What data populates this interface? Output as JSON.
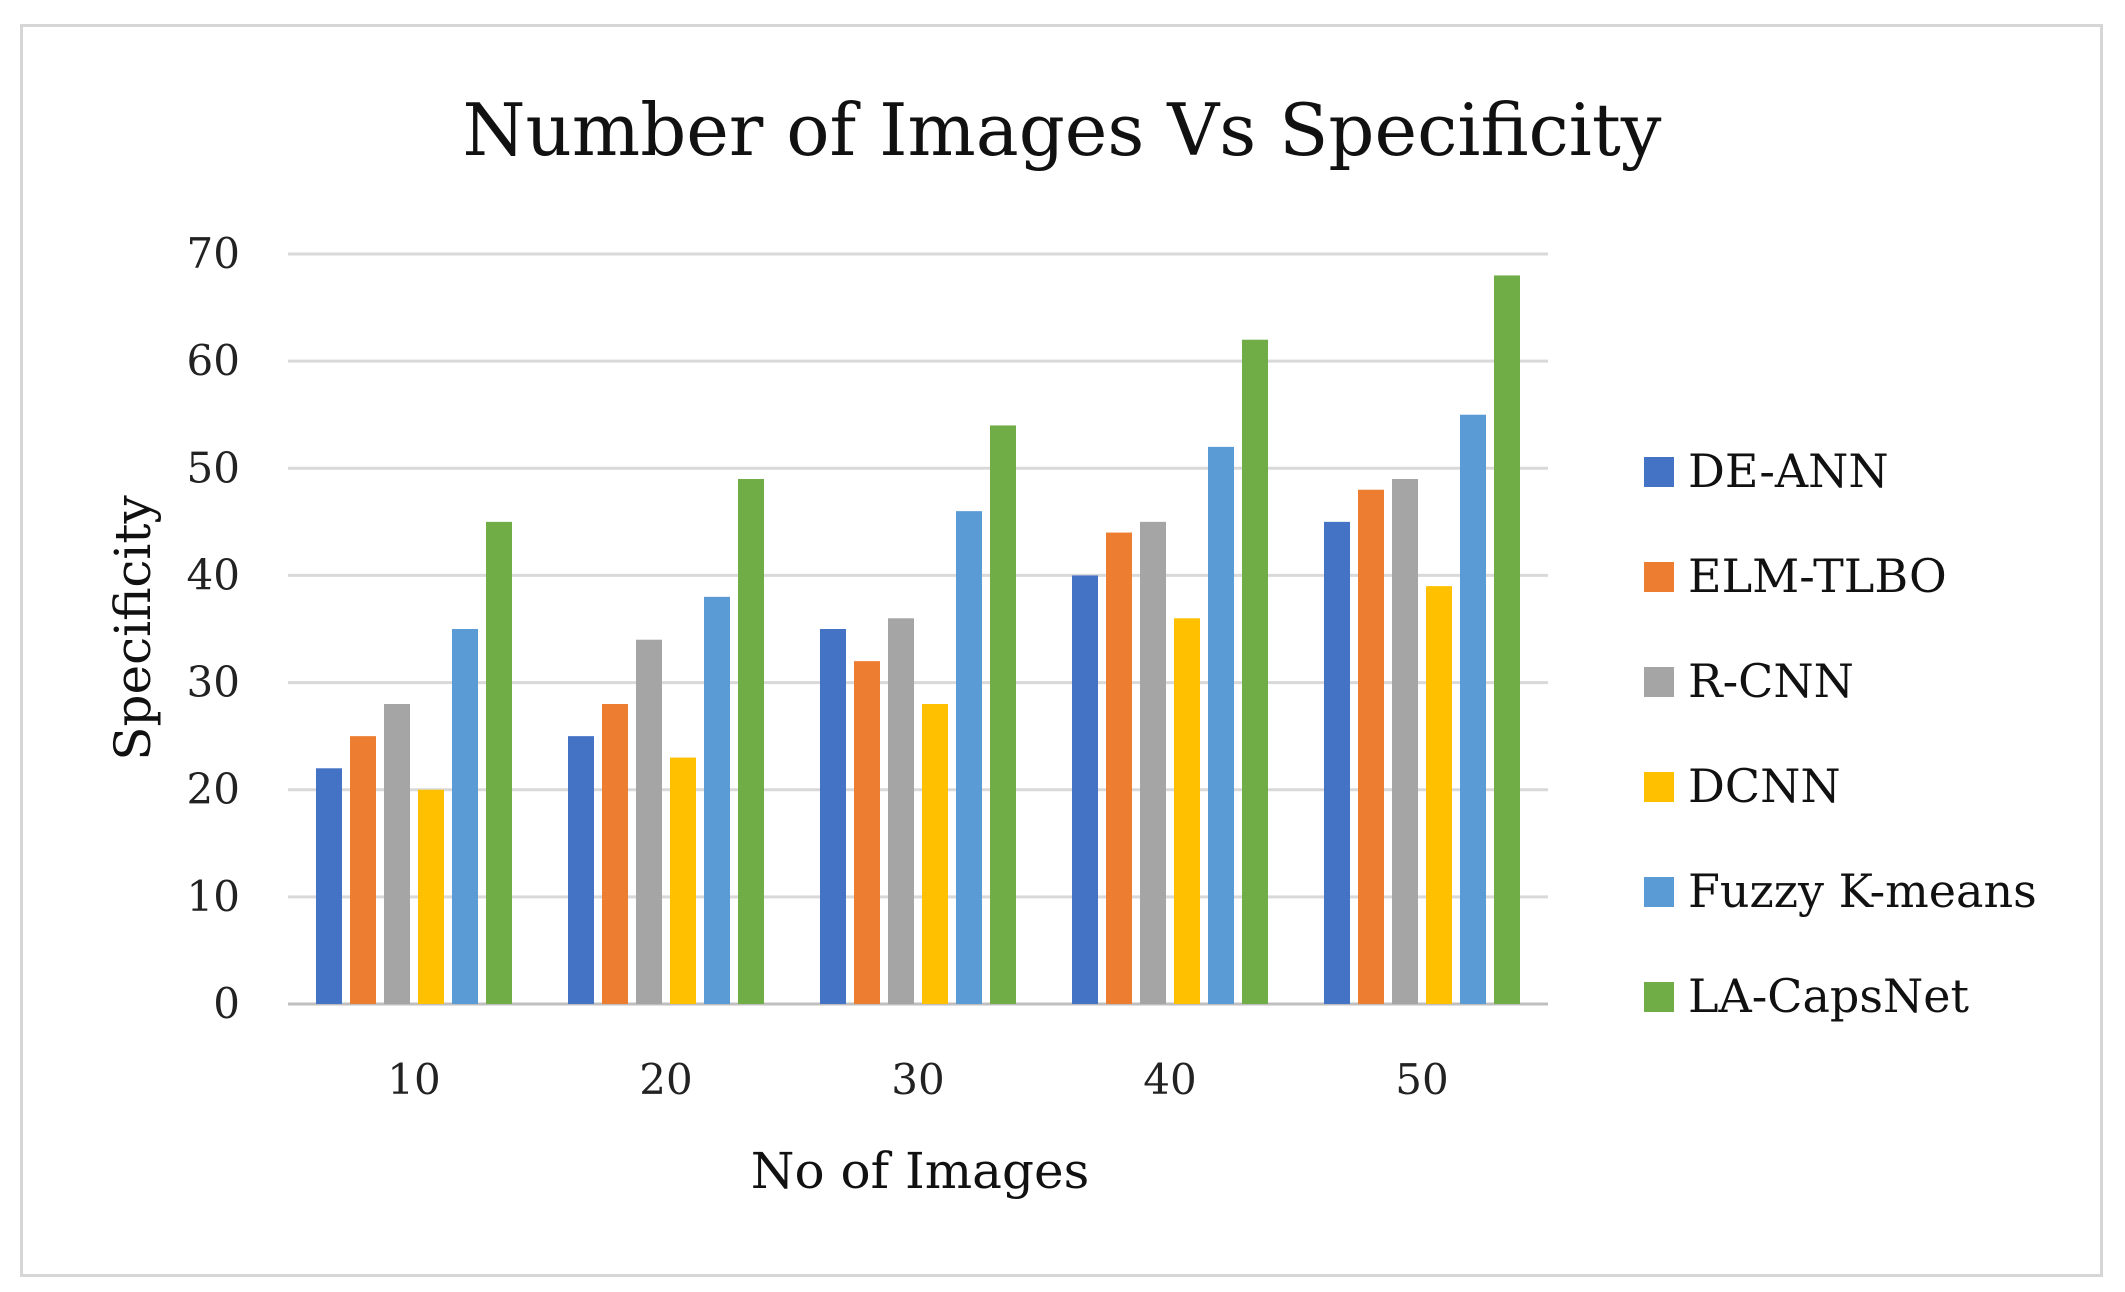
{
  "chart_data": {
    "type": "bar",
    "title": "Number of Images Vs  Specificity",
    "xlabel": "No of Images",
    "ylabel": "Specificity",
    "categories": [
      "10",
      "20",
      "30",
      "40",
      "50"
    ],
    "ylim": [
      0,
      70
    ],
    "yticks": [
      0,
      10,
      20,
      30,
      40,
      50,
      60,
      70
    ],
    "grid": true,
    "legend_position": "right",
    "series": [
      {
        "name": "DE-ANN",
        "color": "#4472c4",
        "values": [
          22,
          25,
          35,
          40,
          45
        ]
      },
      {
        "name": "ELM-TLBO",
        "color": "#ed7d31",
        "values": [
          25,
          28,
          32,
          44,
          48
        ]
      },
      {
        "name": "R-CNN",
        "color": "#a5a5a5",
        "values": [
          28,
          34,
          36,
          45,
          49
        ]
      },
      {
        "name": "DCNN",
        "color": "#ffc000",
        "values": [
          20,
          23,
          28,
          36,
          39
        ]
      },
      {
        "name": "Fuzzy K-means",
        "color": "#5b9bd5",
        "values": [
          35,
          38,
          46,
          52,
          55
        ]
      },
      {
        "name": "LA-CapsNet",
        "color": "#70ad47",
        "values": [
          45,
          49,
          54,
          62,
          68
        ]
      }
    ]
  }
}
